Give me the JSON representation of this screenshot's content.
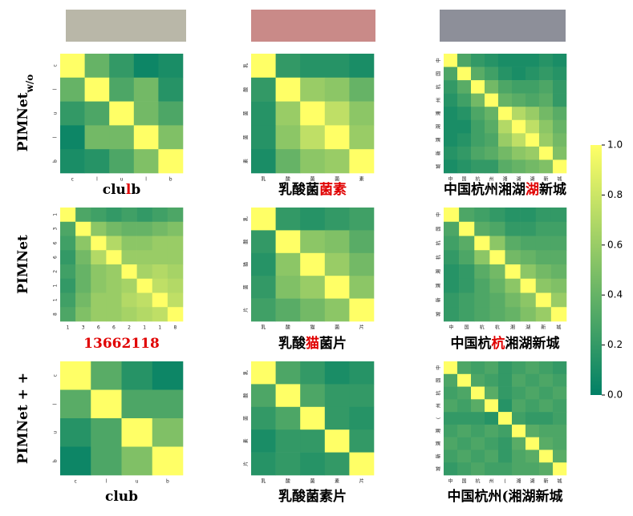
{
  "row_labels": [
    {
      "text": "PIMNet",
      "sub": "w/o"
    },
    {
      "text": "PIMNet + +"
    }
  ],
  "row_label_plain": "PIMNet",
  "colorbar": {
    "colors": [
      "#008066",
      "#ffff66"
    ],
    "lim": [
      0,
      1
    ],
    "ticks": [
      {
        "value": 0,
        "label": "0.0"
      },
      {
        "value": 0.2,
        "label": "0.2"
      },
      {
        "value": 0.4,
        "label": "0.4"
      },
      {
        "value": 0.6,
        "label": "0.6"
      },
      {
        "value": 0.8,
        "label": "0.8"
      },
      {
        "value": 1,
        "label": "1.0"
      }
    ]
  },
  "chart_data": [
    {
      "type": "heatmap",
      "categories": [
        "c",
        "l",
        "u",
        "l",
        "b"
      ],
      "caption": [
        {
          "text": "clu",
          "color": "#000000"
        },
        {
          "text": "l",
          "color": "#e00000"
        },
        {
          "text": "b",
          "color": "#000000"
        }
      ],
      "values": [
        [
          1,
          0.4,
          0.2,
          0.05,
          0.1
        ],
        [
          0.4,
          1,
          0.3,
          0.45,
          0.15
        ],
        [
          0.2,
          0.3,
          1,
          0.45,
          0.3
        ],
        [
          0.05,
          0.45,
          0.45,
          1,
          0.5
        ],
        [
          0.1,
          0.15,
          0.3,
          0.5,
          1
        ]
      ]
    },
    {
      "type": "heatmap",
      "categories": [
        "乳",
        "酸",
        "菌",
        "菌",
        "素"
      ],
      "caption": [
        {
          "text": "乳酸菌",
          "color": "#000000"
        },
        {
          "text": "菌素",
          "color": "#e00000"
        }
      ],
      "values": [
        [
          1,
          0.2,
          0.15,
          0.15,
          0.1
        ],
        [
          0.2,
          1,
          0.6,
          0.55,
          0.4
        ],
        [
          0.15,
          0.6,
          1,
          0.75,
          0.55
        ],
        [
          0.15,
          0.55,
          0.75,
          1,
          0.6
        ],
        [
          0.1,
          0.4,
          0.55,
          0.6,
          1
        ]
      ]
    },
    {
      "type": "heatmap",
      "categories": [
        "中",
        "国",
        "杭",
        "州",
        "湘",
        "湖",
        "湖",
        "新",
        "城"
      ],
      "caption": [
        {
          "text": "中国杭州湘湖",
          "color": "#000000"
        },
        {
          "text": "湖",
          "color": "#e00000"
        },
        {
          "text": "新城",
          "color": "#000000"
        }
      ],
      "values": [
        [
          1,
          0.3,
          0.2,
          0.15,
          0.1,
          0.1,
          0.1,
          0.15,
          0.1
        ],
        [
          0.3,
          1,
          0.35,
          0.25,
          0.15,
          0.1,
          0.15,
          0.2,
          0.15
        ],
        [
          0.2,
          0.35,
          1,
          0.45,
          0.3,
          0.25,
          0.25,
          0.3,
          0.2
        ],
        [
          0.15,
          0.25,
          0.45,
          1,
          0.4,
          0.35,
          0.3,
          0.35,
          0.2
        ],
        [
          0.1,
          0.15,
          0.3,
          0.4,
          1,
          0.7,
          0.6,
          0.45,
          0.35
        ],
        [
          0.1,
          0.1,
          0.25,
          0.35,
          0.7,
          1,
          0.75,
          0.55,
          0.4
        ],
        [
          0.1,
          0.15,
          0.25,
          0.3,
          0.6,
          0.75,
          1,
          0.6,
          0.45
        ],
        [
          0.15,
          0.2,
          0.3,
          0.35,
          0.45,
          0.55,
          0.6,
          1,
          0.5
        ],
        [
          0.1,
          0.15,
          0.2,
          0.2,
          0.35,
          0.4,
          0.45,
          0.5,
          1
        ]
      ]
    },
    {
      "type": "heatmap",
      "categories": [
        "1",
        "3",
        "6",
        "6",
        "2",
        "1",
        "1",
        "8"
      ],
      "caption": [
        {
          "text": "13662118",
          "color": "#e00000"
        }
      ],
      "values": [
        [
          1,
          0.3,
          0.25,
          0.2,
          0.25,
          0.2,
          0.25,
          0.3
        ],
        [
          0.3,
          1,
          0.55,
          0.45,
          0.4,
          0.4,
          0.45,
          0.5
        ],
        [
          0.25,
          0.55,
          1,
          0.7,
          0.55,
          0.55,
          0.6,
          0.6
        ],
        [
          0.2,
          0.45,
          0.7,
          1,
          0.6,
          0.6,
          0.6,
          0.6
        ],
        [
          0.25,
          0.4,
          0.55,
          0.6,
          1,
          0.65,
          0.7,
          0.65
        ],
        [
          0.2,
          0.4,
          0.55,
          0.6,
          0.65,
          1,
          0.75,
          0.7
        ],
        [
          0.25,
          0.45,
          0.6,
          0.6,
          0.7,
          0.75,
          1,
          0.75
        ],
        [
          0.3,
          0.5,
          0.6,
          0.6,
          0.65,
          0.7,
          0.75,
          1
        ]
      ]
    },
    {
      "type": "heatmap",
      "categories": [
        "乳",
        "酸",
        "猫",
        "菌",
        "片"
      ],
      "caption": [
        {
          "text": "乳酸",
          "color": "#000000"
        },
        {
          "text": "猫",
          "color": "#e00000"
        },
        {
          "text": "菌片",
          "color": "#000000"
        }
      ],
      "values": [
        [
          1,
          0.2,
          0.15,
          0.2,
          0.25
        ],
        [
          0.2,
          1,
          0.55,
          0.5,
          0.35
        ],
        [
          0.15,
          0.55,
          1,
          0.6,
          0.45
        ],
        [
          0.2,
          0.5,
          0.6,
          1,
          0.55
        ],
        [
          0.25,
          0.35,
          0.45,
          0.55,
          1
        ]
      ]
    },
    {
      "type": "heatmap",
      "categories": [
        "中",
        "国",
        "杭",
        "杭",
        "湘",
        "湖",
        "新",
        "城"
      ],
      "caption": [
        {
          "text": "中国杭",
          "color": "#000000"
        },
        {
          "text": "杭",
          "color": "#e00000"
        },
        {
          "text": "湘湖新城",
          "color": "#000000"
        }
      ],
      "values": [
        [
          1,
          0.3,
          0.25,
          0.2,
          0.15,
          0.15,
          0.2,
          0.2
        ],
        [
          0.3,
          1,
          0.35,
          0.3,
          0.2,
          0.2,
          0.25,
          0.25
        ],
        [
          0.25,
          0.35,
          1,
          0.55,
          0.35,
          0.3,
          0.3,
          0.3
        ],
        [
          0.2,
          0.3,
          0.55,
          1,
          0.45,
          0.4,
          0.35,
          0.35
        ],
        [
          0.15,
          0.2,
          0.35,
          0.45,
          1,
          0.55,
          0.45,
          0.4
        ],
        [
          0.15,
          0.2,
          0.3,
          0.4,
          0.55,
          1,
          0.55,
          0.5
        ],
        [
          0.2,
          0.25,
          0.3,
          0.35,
          0.45,
          0.55,
          1,
          0.6
        ],
        [
          0.2,
          0.25,
          0.3,
          0.35,
          0.4,
          0.5,
          0.6,
          1
        ]
      ]
    },
    {
      "type": "heatmap",
      "categories": [
        "c",
        "l",
        "u",
        "b"
      ],
      "caption": [
        {
          "text": "club",
          "color": "#000000"
        }
      ],
      "values": [
        [
          1,
          0.35,
          0.15,
          0.05
        ],
        [
          0.35,
          1,
          0.3,
          0.3
        ],
        [
          0.15,
          0.3,
          1,
          0.5
        ],
        [
          0.05,
          0.3,
          0.5,
          1
        ]
      ]
    },
    {
      "type": "heatmap",
      "categories": [
        "乳",
        "酸",
        "菌",
        "素",
        "片"
      ],
      "caption": [
        {
          "text": "乳酸菌素片",
          "color": "#000000"
        }
      ],
      "values": [
        [
          1,
          0.3,
          0.2,
          0.1,
          0.15
        ],
        [
          0.3,
          1,
          0.3,
          0.2,
          0.2
        ],
        [
          0.2,
          0.3,
          1,
          0.2,
          0.15
        ],
        [
          0.1,
          0.2,
          0.2,
          1,
          0.2
        ],
        [
          0.15,
          0.2,
          0.15,
          0.2,
          1
        ]
      ]
    },
    {
      "type": "heatmap",
      "categories": [
        "中",
        "国",
        "杭",
        "州",
        "(",
        "湘",
        "湖",
        "新",
        "城"
      ],
      "caption": [
        {
          "text": "中国杭州(湘湖新城",
          "color": "#000000"
        }
      ],
      "values": [
        [
          1,
          0.3,
          0.25,
          0.3,
          0.2,
          0.25,
          0.3,
          0.25,
          0.2
        ],
        [
          0.3,
          1,
          0.3,
          0.25,
          0.2,
          0.3,
          0.25,
          0.3,
          0.25
        ],
        [
          0.25,
          0.3,
          1,
          0.35,
          0.2,
          0.25,
          0.3,
          0.25,
          0.3
        ],
        [
          0.3,
          0.25,
          0.35,
          1,
          0.15,
          0.3,
          0.25,
          0.3,
          0.25
        ],
        [
          0.2,
          0.2,
          0.2,
          0.15,
          1,
          0.25,
          0.2,
          0.2,
          0.25
        ],
        [
          0.25,
          0.3,
          0.25,
          0.3,
          0.25,
          1,
          0.35,
          0.3,
          0.3
        ],
        [
          0.3,
          0.25,
          0.3,
          0.25,
          0.2,
          0.35,
          1,
          0.35,
          0.3
        ],
        [
          0.25,
          0.3,
          0.25,
          0.3,
          0.2,
          0.3,
          0.35,
          1,
          0.35
        ],
        [
          0.2,
          0.25,
          0.3,
          0.25,
          0.25,
          0.3,
          0.3,
          0.35,
          1
        ]
      ]
    }
  ]
}
